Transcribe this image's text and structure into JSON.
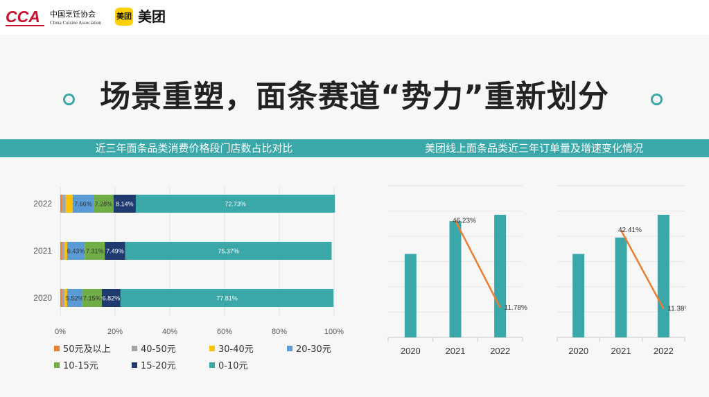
{
  "header": {
    "cca_mark": "CCA",
    "cca_name": "中国烹饪协会",
    "cca_name_en": "China Cuisine Association",
    "meituan_badge": "美团",
    "meituan_name": "美团"
  },
  "title": "场景重塑，面条赛道“势力”重新划分",
  "colors": {
    "teal": "#3aa7a9",
    "orange": "#ed7d31"
  },
  "chart_data": [
    {
      "type": "bar",
      "orientation": "horizontal-stacked-100",
      "title": "近三年面条品类消费价格段门店数占比对比",
      "categories": [
        "2020",
        "2021",
        "2022"
      ],
      "series": [
        {
          "name": "50元及以上",
          "color": "#ed7d31",
          "values": [
            0.5,
            0.5,
            0.5
          ],
          "labels": [
            "",
            "",
            ""
          ]
        },
        {
          "name": "40-50元",
          "color": "#a5a5a5",
          "values": [
            1.0,
            1.0,
            1.5
          ],
          "labels": [
            "",
            "",
            ""
          ]
        },
        {
          "name": "30-40元",
          "color": "#ffc000",
          "values": [
            1.0,
            1.0,
            2.5
          ],
          "labels": [
            "",
            "",
            ""
          ]
        },
        {
          "name": "20-30元",
          "color": "#5b9bd5",
          "values": [
            5.52,
            6.43,
            7.66
          ],
          "labels": [
            "5.52%",
            "6.43%",
            "7.66%"
          ]
        },
        {
          "name": "10-15元",
          "color": "#70ad47",
          "values": [
            7.15,
            7.31,
            7.28
          ],
          "labels": [
            "7.15%",
            "7.31%",
            "7.28%"
          ]
        },
        {
          "name": "15-20元",
          "color": "#1f3a6e",
          "values": [
            6.82,
            7.49,
            8.14
          ],
          "labels": [
            "6.82%",
            "7.49%",
            "8.14%"
          ]
        },
        {
          "name": "0-10元",
          "color": "#3aa7a9",
          "values": [
            77.81,
            75.37,
            72.73
          ],
          "labels": [
            "77.81%",
            "75.37%",
            "72.73%"
          ]
        }
      ],
      "xticks": [
        "0%",
        "20%",
        "40%",
        "60%",
        "80%",
        "100%"
      ],
      "xlim": [
        0,
        100
      ],
      "legend_order": [
        "50元及以上",
        "40-50元",
        "30-40元",
        "20-30元",
        "10-15元",
        "15-20元",
        "0-10元"
      ]
    },
    {
      "type": "bar+line",
      "title": "美团线上面条品类近三年订单量及增速变化情况",
      "panels": [
        {
          "categories": [
            "2020",
            "2021",
            "2022"
          ],
          "bar_values": [
            66,
            92,
            97
          ],
          "ylim": [
            0,
            120
          ],
          "growth_values": [
            46.23,
            11.78
          ],
          "growth_labels": [
            "46.23%",
            "11.78%"
          ]
        },
        {
          "categories": [
            "2020",
            "2021",
            "2022"
          ],
          "bar_values": [
            66,
            79,
            97
          ],
          "ylim": [
            0,
            120
          ],
          "growth_values": [
            42.41,
            11.38
          ],
          "growth_labels": [
            "42.41%",
            "11.38%"
          ]
        }
      ]
    }
  ]
}
